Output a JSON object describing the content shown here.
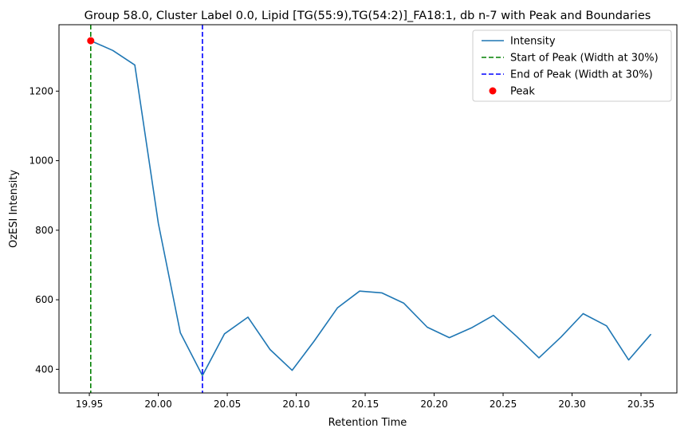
{
  "chart_data": {
    "type": "line",
    "title": "Group 58.0, Cluster Label 0.0, Lipid [TG(55:9),TG(54:2)]_FA18:1, db n-7 with Peak and Boundaries",
    "xlabel": "Retention Time",
    "ylabel": "OzESI Intensity",
    "xlim": [
      19.928,
      20.376
    ],
    "ylim": [
      332,
      1391
    ],
    "xticks": [
      19.95,
      20.0,
      20.05,
      20.1,
      20.15,
      20.2,
      20.25,
      20.3,
      20.35
    ],
    "xtick_labels": [
      "19.95",
      "20.00",
      "20.05",
      "20.10",
      "20.15",
      "20.20",
      "20.25",
      "20.30",
      "20.35"
    ],
    "yticks": [
      400,
      600,
      800,
      1000,
      1200
    ],
    "ytick_labels": [
      "400",
      "600",
      "800",
      "1000",
      "1200"
    ],
    "grid": false,
    "legend_position": "top-right",
    "series": [
      {
        "name": "Intensity",
        "color": "#1f77b4",
        "x": [
          19.951,
          19.967,
          19.983,
          20.0,
          20.016,
          20.032,
          20.048,
          20.065,
          20.081,
          20.097,
          20.113,
          20.13,
          20.146,
          20.162,
          20.178,
          20.195,
          20.211,
          20.227,
          20.243,
          20.26,
          20.276,
          20.292,
          20.308,
          20.325,
          20.341,
          20.357
        ],
        "y": [
          1345,
          1317,
          1275,
          820,
          505,
          382,
          502,
          550,
          457,
          397,
          481,
          577,
          625,
          620,
          590,
          521,
          491,
          519,
          555,
          494,
          433,
          493,
          560,
          525,
          427,
          500
        ]
      }
    ],
    "vlines": [
      {
        "name": "Start of Peak (Width at 30%)",
        "x": 19.951,
        "color": "#008000",
        "style": "dashed"
      },
      {
        "name": "End of Peak (Width at 30%)",
        "x": 20.032,
        "color": "#0000ff",
        "style": "dashed"
      }
    ],
    "points": [
      {
        "name": "Peak",
        "x": 19.951,
        "y": 1345,
        "color": "#ff0000"
      }
    ],
    "legend": [
      {
        "label": "Intensity",
        "kind": "line",
        "color": "#1f77b4",
        "style": "solid"
      },
      {
        "label": "Start of Peak (Width at 30%)",
        "kind": "line",
        "color": "#008000",
        "style": "dashed"
      },
      {
        "label": "End of Peak (Width at 30%)",
        "kind": "line",
        "color": "#0000ff",
        "style": "dashed"
      },
      {
        "label": "Peak",
        "kind": "marker",
        "color": "#ff0000",
        "style": "dot"
      }
    ]
  }
}
